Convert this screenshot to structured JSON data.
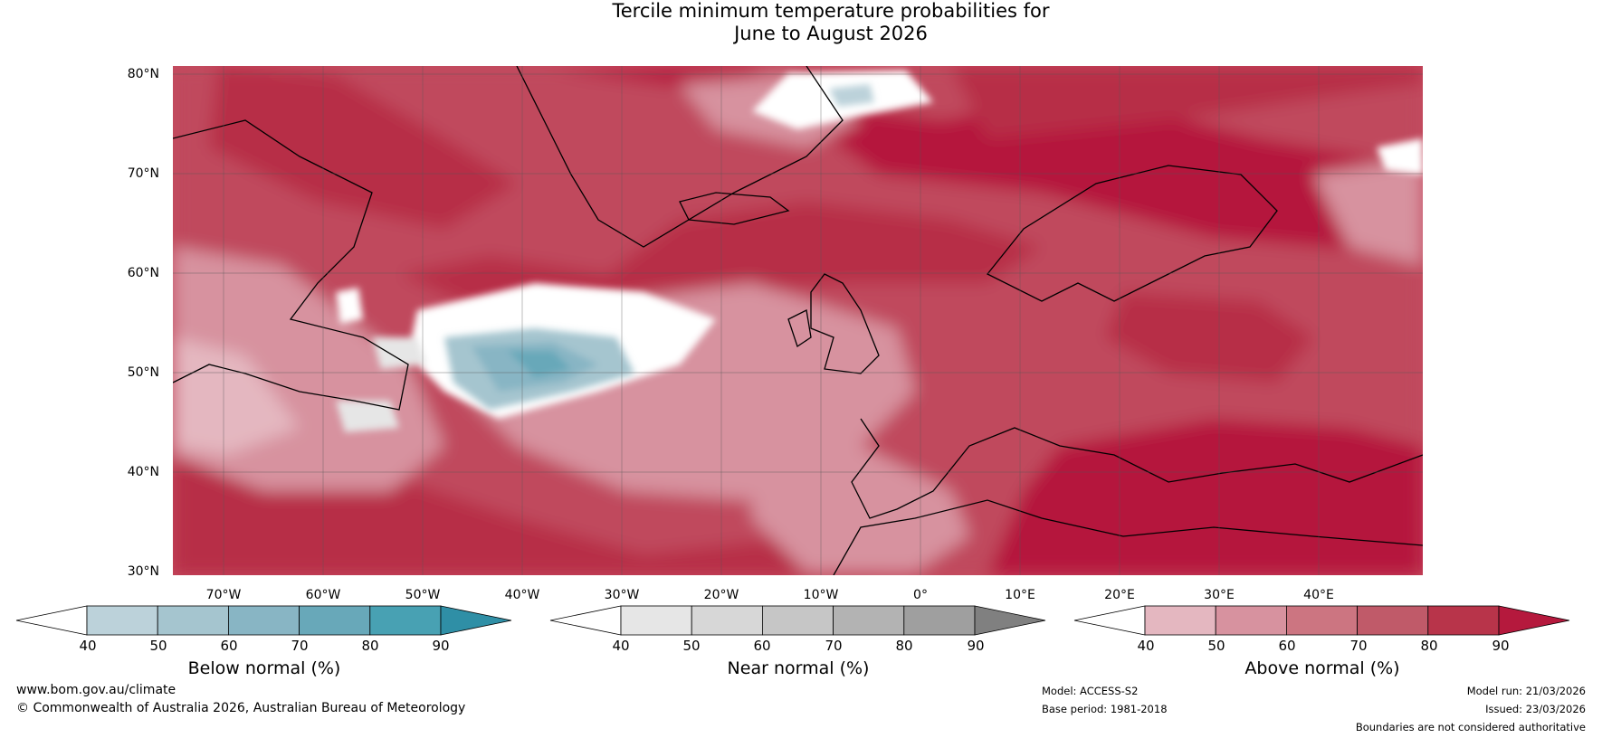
{
  "title": {
    "line1": "Tercile minimum temperature probabilities for",
    "line2": "June to August 2026"
  },
  "map": {
    "region": "North Atlantic and Europe",
    "latitude_labels": [
      "80°N",
      "70°N",
      "60°N",
      "50°N",
      "40°N",
      "30°N"
    ],
    "longitude_labels": [
      "70°W",
      "60°W",
      "50°W",
      "40°W",
      "30°W",
      "20°W",
      "10°W",
      "0°",
      "10°E",
      "20°E",
      "30°E",
      "40°E"
    ]
  },
  "colorbars": [
    {
      "label": "Below normal (%)",
      "ticks": [
        "40",
        "50",
        "60",
        "70",
        "80",
        "90"
      ],
      "colors": [
        "#ffffff",
        "#bcd2da",
        "#a5c5cf",
        "#88b5c4",
        "#68a8b9",
        "#48a1b3",
        "#2f8fa6"
      ]
    },
    {
      "label": "Near normal (%)",
      "ticks": [
        "40",
        "50",
        "60",
        "70",
        "80",
        "90"
      ],
      "colors": [
        "#ffffff",
        "#e6e6e6",
        "#d7d7d7",
        "#c6c6c6",
        "#b3b3b3",
        "#9f9f9f",
        "#808080"
      ]
    },
    {
      "label": "Above normal (%)",
      "ticks": [
        "40",
        "50",
        "60",
        "70",
        "80",
        "90"
      ],
      "colors": [
        "#ffffff",
        "#e4b7c0",
        "#d7929f",
        "#cc7581",
        "#c05a69",
        "#b8344a",
        "#b5193d"
      ]
    }
  ],
  "footer": {
    "website": "www.bom.gov.au/climate",
    "copyright": "© Commonwealth of Australia 2026, Australian Bureau of Meteorology",
    "model": "Model: ACCESS-S2",
    "base_period": "Base period: 1981-2018",
    "model_run": "Model run: 21/03/2026",
    "issued": "Issued: 23/03/2026",
    "disclaimer": "Boundaries are not considered authoritative"
  }
}
